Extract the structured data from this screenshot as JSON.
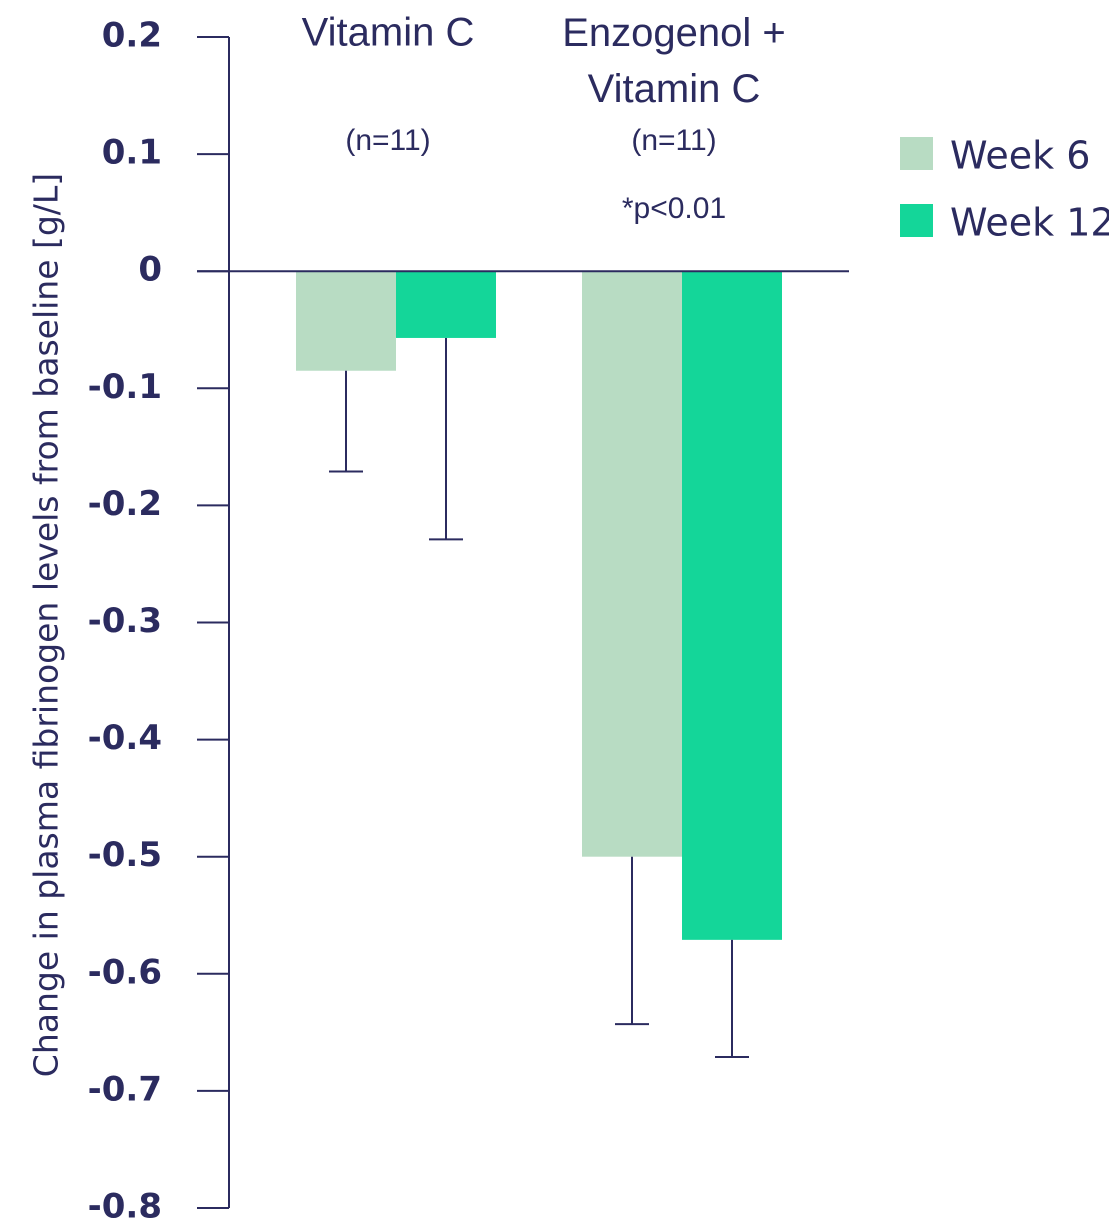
{
  "chart_data": {
    "type": "bar",
    "y_label": "Change in plasma fibrinogen levels from baseline [g/L]",
    "categories": [
      "Vitamin C",
      "Enzogenol + Vitamin C"
    ],
    "series": [
      {
        "name": "Week 6",
        "color": "#b8dcc3",
        "values": [
          -0.085,
          -0.5
        ],
        "errors": [
          0.086,
          0.143
        ]
      },
      {
        "name": "Week 12",
        "color": "#14d699",
        "values": [
          -0.057,
          -0.571
        ],
        "errors": [
          0.172,
          0.1
        ]
      }
    ],
    "annotations": [
      {
        "text": "(n=11)",
        "category": 0
      },
      {
        "text": "(n=11)",
        "category": 1
      },
      {
        "text": "*p<0.01",
        "category": 1
      }
    ],
    "ylim": [
      -0.8,
      0.2
    ],
    "yticks": [
      0.2,
      0.1,
      0,
      -0.1,
      -0.2,
      -0.3,
      -0.4,
      -0.5,
      -0.6,
      -0.7,
      -0.8
    ],
    "legend": "right"
  }
}
